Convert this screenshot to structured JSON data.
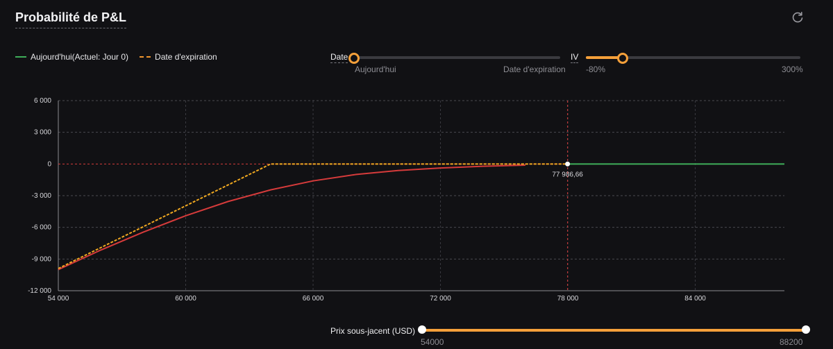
{
  "header": {
    "title": "Probabilité de P&L"
  },
  "icons": {
    "refresh": "refresh-icon"
  },
  "legend": [
    {
      "label": "Aujourd'hui(Actuel: Jour 0)",
      "color": "#3fae5a",
      "style": "solid"
    },
    {
      "label": "Date d'expiration",
      "color": "#f0962e",
      "style": "dashed"
    }
  ],
  "date_slider": {
    "label": "Date",
    "min_label": "Aujourd'hui",
    "max_label": "Date d'expiration",
    "value": 0.0
  },
  "iv_slider": {
    "label": "IV",
    "min_label": "-80%",
    "max_label": "300%",
    "value": 0.17
  },
  "price_slider": {
    "label": "Prix sous-jacent (USD)",
    "min_label": "54000",
    "max_label": "88200",
    "low": 54000,
    "high": 88200
  },
  "colors": {
    "today_below": "#d63b3b",
    "today_above": "#3fae5a",
    "expiry": "#f0a820",
    "marker": "#d63b3b"
  },
  "chart_data": {
    "type": "line",
    "xlim": [
      54000,
      88200
    ],
    "ylim": [
      -12000,
      6000
    ],
    "xticks": [
      54000,
      60000,
      66000,
      72000,
      78000,
      84000
    ],
    "xtick_labels": [
      "54 000",
      "60 000",
      "66 000",
      "72 000",
      "78 000",
      "84 000"
    ],
    "yticks": [
      6000,
      3000,
      0,
      -3000,
      -6000,
      -9000,
      -12000
    ],
    "ytick_labels": [
      "6 000",
      "3 000",
      "0",
      "-3 000",
      "-6 000",
      "-9 000",
      "-12 000"
    ],
    "grid": true,
    "current_price": 77986.66,
    "current_price_label": "77 986,66",
    "series": [
      {
        "style": "solid",
        "x": [
          54000,
          56000,
          58000,
          60000,
          62000,
          64000,
          66000,
          68000,
          70000,
          72000,
          74000,
          76000,
          78000,
          80000,
          84000,
          88200
        ],
        "y": [
          -10000,
          -8150,
          -6450,
          -4900,
          -3550,
          -2450,
          -1600,
          -1000,
          -620,
          -380,
          -220,
          -110,
          0,
          0,
          0,
          0
        ]
      },
      {
        "style": "dashed",
        "x": [
          54000,
          64000,
          66000,
          78000,
          88200
        ],
        "y": [
          -9900,
          0,
          0,
          0,
          0
        ]
      }
    ]
  }
}
